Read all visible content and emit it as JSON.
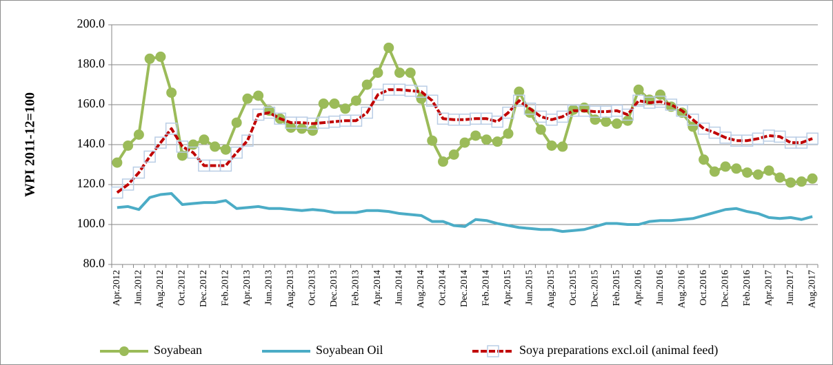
{
  "chart_data": {
    "type": "line",
    "y_label": "WPI 2011-12=100",
    "categories": [
      "Apr.2012",
      null,
      "Jun.2012",
      null,
      "Aug.2012",
      null,
      "Oct.2012",
      null,
      "Dec.2012",
      null,
      "Feb.2012",
      null,
      "Apr.2013",
      null,
      "Jun.2013",
      null,
      "Aug.2013",
      null,
      "Oct.2013",
      null,
      "Dec.2013",
      null,
      "Feb.2013",
      null,
      "Apr.2014",
      null,
      "Jun.2014",
      null,
      "Aug.2014",
      null,
      "Oct.2014",
      null,
      "Dec.2014",
      null,
      "Feb.2014",
      null,
      "Apr.2015",
      null,
      "Jun.2015",
      null,
      "Aug.2015",
      null,
      "Oct.2015",
      null,
      "Dec.2015",
      null,
      "Feb.2015",
      null,
      "Apr.2016",
      null,
      "Jun.2016",
      null,
      "Aug.2016",
      null,
      "Oct.2016",
      null,
      "Dec.2016",
      null,
      "Feb.2016",
      null,
      "Apr.2017",
      null,
      "Jun.2017",
      null,
      "Aug.2017"
    ],
    "series": [
      {
        "name": "Soyabean",
        "color": "#9bbb59",
        "marker": "circle",
        "values": [
          131,
          139.5,
          145,
          183,
          184,
          166,
          134.5,
          140,
          142.5,
          139,
          137.5,
          151,
          163,
          164.5,
          157,
          153,
          148.5,
          148,
          147,
          160.5,
          160.5,
          158,
          162,
          170,
          176,
          188.5,
          176,
          176,
          163,
          142,
          131.5,
          135,
          141,
          144.5,
          142.5,
          141.5,
          145.5,
          166.5,
          156,
          147.5,
          139.5,
          139,
          157.5,
          158.5,
          152.5,
          151.5,
          150.5,
          152,
          167.5,
          162.5,
          165,
          159,
          156,
          149,
          132.5,
          126.5,
          129,
          128,
          126,
          125,
          127,
          123.5,
          121,
          121.5,
          123
        ]
      },
      {
        "name": "Soyabean Oil",
        "color": "#4bacc6",
        "marker": "none",
        "values": [
          108.5,
          109,
          107.5,
          113.5,
          115,
          115.5,
          110,
          110.5,
          111,
          111,
          112,
          108,
          108.5,
          109,
          108,
          108,
          107.5,
          107,
          107.5,
          107,
          106,
          106,
          106,
          107,
          107,
          106.5,
          105.5,
          105,
          104.5,
          101.5,
          101.5,
          99.5,
          99,
          102.5,
          102,
          100.5,
          99.5,
          98.5,
          98,
          97.5,
          97.5,
          96.5,
          97,
          97.5,
          99,
          100.5,
          100.5,
          100,
          100,
          101.5,
          102,
          102,
          102.5,
          103,
          104.5,
          106,
          107.5,
          108,
          106.5,
          105.5,
          103.5,
          103,
          103.5,
          102.5,
          104
        ]
      },
      {
        "name": "Soya preparations excl.oil (animal feed)",
        "color": "#c00000",
        "marker": "square",
        "dashed": true,
        "values": [
          116,
          120,
          126,
          134,
          141,
          148,
          139,
          136,
          129.5,
          129.5,
          129.5,
          136,
          142,
          155,
          156,
          153,
          151,
          151,
          150.5,
          151,
          151.5,
          152,
          152,
          156,
          165,
          167.5,
          167.5,
          167,
          166.5,
          162,
          153,
          152.5,
          152.5,
          153,
          153,
          151.5,
          156,
          162,
          158,
          154,
          152.5,
          154,
          157,
          157,
          156.5,
          156.5,
          157,
          155,
          162,
          161,
          161.5,
          160,
          157,
          152.5,
          148,
          146,
          143.5,
          142,
          142,
          143,
          144.5,
          144,
          141,
          141,
          143
        ]
      }
    ],
    "ylim": [
      80,
      200
    ],
    "yticks": [
      {
        "value": 80,
        "label": "80.0"
      },
      {
        "value": 100,
        "label": "100.0"
      },
      {
        "value": 120,
        "label": "120.0"
      },
      {
        "value": 140,
        "label": "140.0"
      },
      {
        "value": 160,
        "label": "160.0"
      },
      {
        "value": 180,
        "label": "180.0"
      },
      {
        "value": 200,
        "label": "200.0"
      }
    ],
    "grid": true,
    "legend": "bottom"
  }
}
